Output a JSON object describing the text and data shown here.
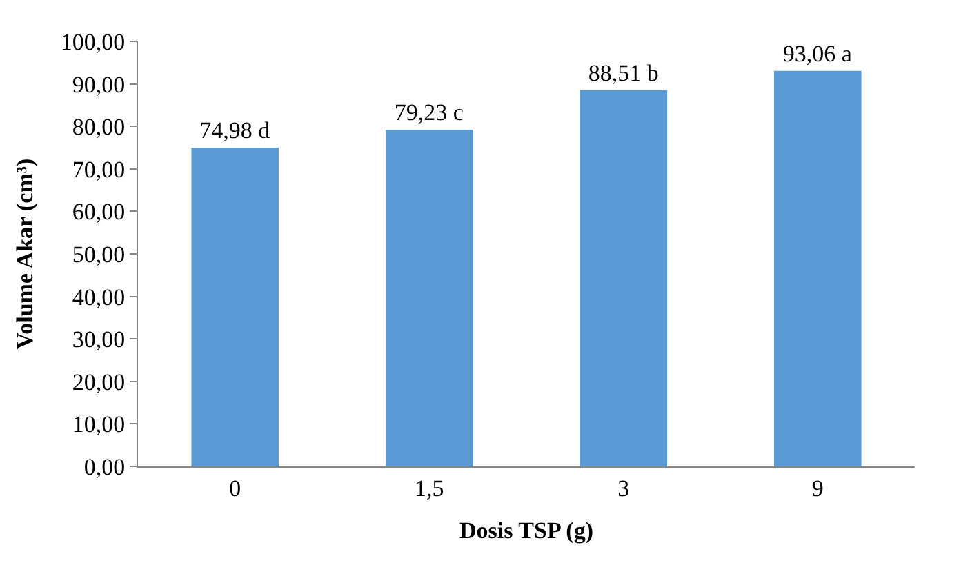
{
  "chart_data": {
    "type": "bar",
    "xlabel": "Dosis TSP (g)",
    "ylabel": "Volume Akar (cm³)",
    "categories": [
      "0",
      "1,5",
      "3",
      "9"
    ],
    "values": [
      74.98,
      79.23,
      88.51,
      93.06
    ],
    "value_labels": [
      "74,98 d",
      "79,23 c",
      "88,51 b",
      "93,06 a"
    ],
    "color": "#5b9bd5",
    "ylim": [
      0,
      100
    ],
    "yticks": [
      {
        "value": 0,
        "label": "0,00"
      },
      {
        "value": 10,
        "label": "10,00"
      },
      {
        "value": 20,
        "label": "20,00"
      },
      {
        "value": 30,
        "label": "30,00"
      },
      {
        "value": 40,
        "label": "40,00"
      },
      {
        "value": 50,
        "label": "50,00"
      },
      {
        "value": 60,
        "label": "60,00"
      },
      {
        "value": 70,
        "label": "70,00"
      },
      {
        "value": 80,
        "label": "80,00"
      },
      {
        "value": 90,
        "label": "90,00"
      },
      {
        "value": 100,
        "label": "100,00"
      }
    ]
  }
}
